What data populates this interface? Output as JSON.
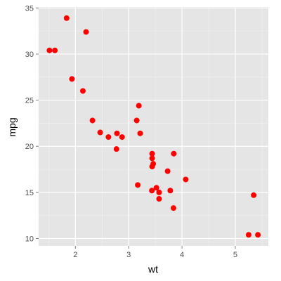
{
  "colors": {
    "panel": "#e5e5e5",
    "grid_major": "#ffffff",
    "grid_minor": "#f2f2f2",
    "point": "#ff0000",
    "tick_text": "#4d4d4d",
    "tick_mark": "#7f7f7f"
  },
  "chart_data": {
    "type": "scatter",
    "title": "",
    "xlabel": "wt",
    "ylabel": "mpg",
    "xlim": [
      1.31,
      5.62
    ],
    "ylim": [
      9.2,
      35.1
    ],
    "x_ticks": [
      2,
      3,
      4,
      5
    ],
    "y_ticks": [
      10,
      15,
      20,
      25,
      30,
      35
    ],
    "x_tick_labels": [
      "2",
      "3",
      "4",
      "5"
    ],
    "y_tick_labels": [
      "10",
      "15",
      "20",
      "25",
      "30",
      "35"
    ],
    "x_minor_ticks": [
      1.5,
      2.5,
      3.5,
      4.5,
      5.5
    ],
    "y_minor_ticks": [
      12.5,
      17.5,
      22.5,
      27.5,
      32.5
    ],
    "grid": true,
    "legend": "none",
    "points": [
      {
        "x": 2.62,
        "y": 21.0
      },
      {
        "x": 2.875,
        "y": 21.0
      },
      {
        "x": 2.32,
        "y": 22.8
      },
      {
        "x": 3.215,
        "y": 21.4
      },
      {
        "x": 3.44,
        "y": 18.7
      },
      {
        "x": 3.46,
        "y": 18.1
      },
      {
        "x": 3.57,
        "y": 14.3
      },
      {
        "x": 3.19,
        "y": 24.4
      },
      {
        "x": 3.15,
        "y": 22.8
      },
      {
        "x": 3.44,
        "y": 19.2
      },
      {
        "x": 3.44,
        "y": 17.8
      },
      {
        "x": 4.07,
        "y": 16.4
      },
      {
        "x": 3.73,
        "y": 17.3
      },
      {
        "x": 3.78,
        "y": 15.2
      },
      {
        "x": 5.25,
        "y": 10.4
      },
      {
        "x": 5.424,
        "y": 10.4
      },
      {
        "x": 5.345,
        "y": 14.7
      },
      {
        "x": 2.2,
        "y": 32.4
      },
      {
        "x": 1.615,
        "y": 30.4
      },
      {
        "x": 1.835,
        "y": 33.9
      },
      {
        "x": 2.465,
        "y": 21.5
      },
      {
        "x": 3.52,
        "y": 15.5
      },
      {
        "x": 3.435,
        "y": 15.2
      },
      {
        "x": 3.84,
        "y": 13.3
      },
      {
        "x": 3.845,
        "y": 19.2
      },
      {
        "x": 1.935,
        "y": 27.3
      },
      {
        "x": 2.14,
        "y": 26.0
      },
      {
        "x": 1.513,
        "y": 30.4
      },
      {
        "x": 3.17,
        "y": 15.8
      },
      {
        "x": 2.77,
        "y": 19.7
      },
      {
        "x": 3.57,
        "y": 15.0
      },
      {
        "x": 2.78,
        "y": 21.4
      }
    ]
  }
}
